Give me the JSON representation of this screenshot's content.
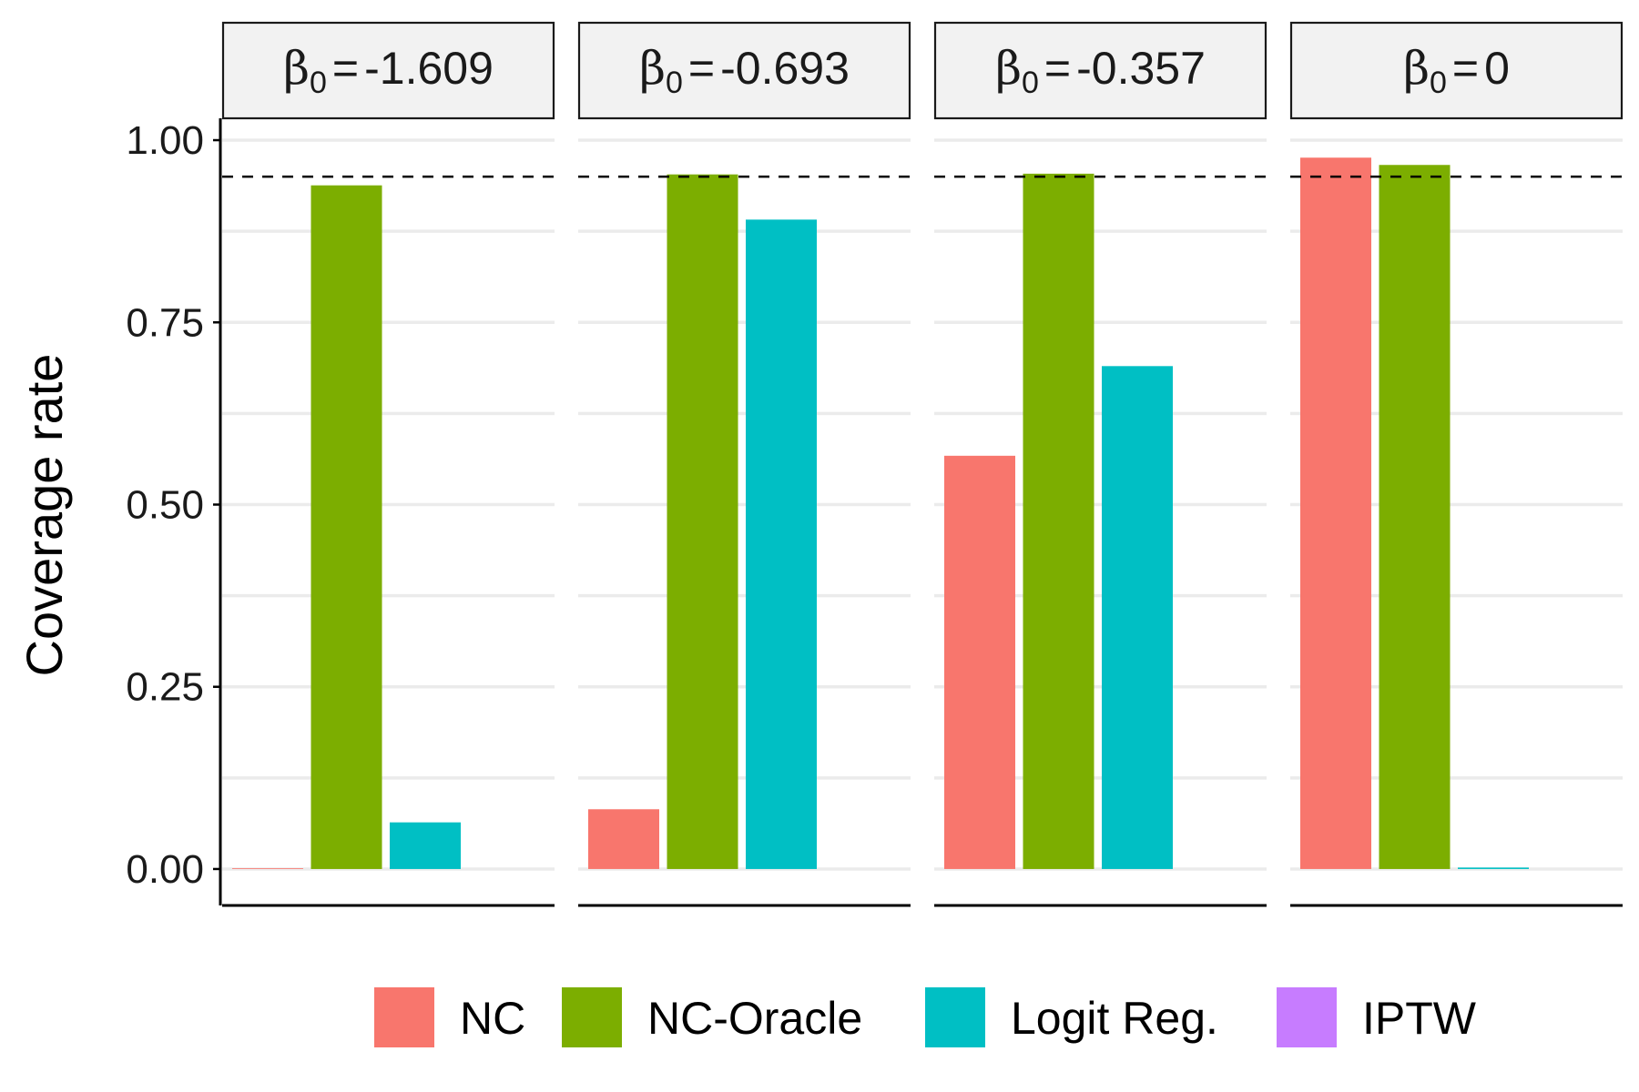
{
  "chart_data": {
    "type": "bar",
    "ylabel": "Coverage rate",
    "xlabel": "",
    "ylim": [
      -0.05,
      1.03
    ],
    "yticks": [
      0.0,
      0.25,
      0.5,
      0.75,
      1.0
    ],
    "ytick_labels": [
      "0.00",
      "0.25",
      "0.50",
      "0.75",
      "1.00"
    ],
    "reference_line": {
      "y": 0.95,
      "style": "dashed"
    },
    "grid": "horizontal",
    "legend_position": "bottom",
    "panels": [
      {
        "strip": {
          "symbol": "β",
          "sub": "0",
          "rel": "=",
          "value": "-1.609"
        },
        "values": [
          0.001,
          0.938,
          0.064,
          0.0
        ]
      },
      {
        "strip": {
          "symbol": "β",
          "sub": "0",
          "rel": "=",
          "value": "-0.693"
        },
        "values": [
          0.082,
          0.953,
          0.891,
          0.0
        ]
      },
      {
        "strip": {
          "symbol": "β",
          "sub": "0",
          "rel": "=",
          "value": "-0.357"
        },
        "values": [
          0.567,
          0.954,
          0.69,
          0.0
        ]
      },
      {
        "strip": {
          "symbol": "β",
          "sub": "0",
          "rel": "=",
          "value": "0"
        },
        "values": [
          0.976,
          0.966,
          0.002,
          0.0
        ]
      }
    ],
    "series": [
      {
        "name": "NC",
        "color": "#F8766D"
      },
      {
        "name": "NC-Oracle",
        "color": "#7CAE00"
      },
      {
        "name": "Logit Reg.",
        "color": "#00BFC4"
      },
      {
        "name": "IPTW",
        "color": "#C77CFF"
      }
    ]
  }
}
